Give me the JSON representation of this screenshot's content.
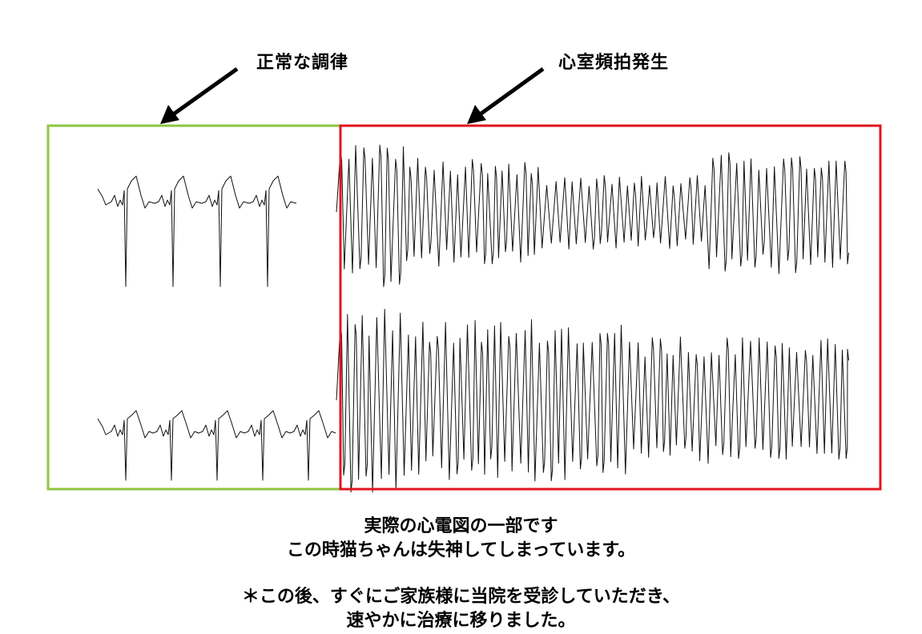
{
  "labels": {
    "normal_rhythm": "正常な調律",
    "ventricular_tachycardia": "心室頻拍発生"
  },
  "captions": {
    "line1": "実際の心電図の一部です",
    "line2": "この時猫ちゃんは失神してしまっています。",
    "line3": "＊この後、すぐにご家族様に当院を受診していただき、",
    "line4": "速やかに治療に移りました。"
  },
  "colors": {
    "normal_box": "#8dc63f",
    "vt_box": "#e0141e",
    "trace": "#111111",
    "arrow": "#000000"
  }
}
